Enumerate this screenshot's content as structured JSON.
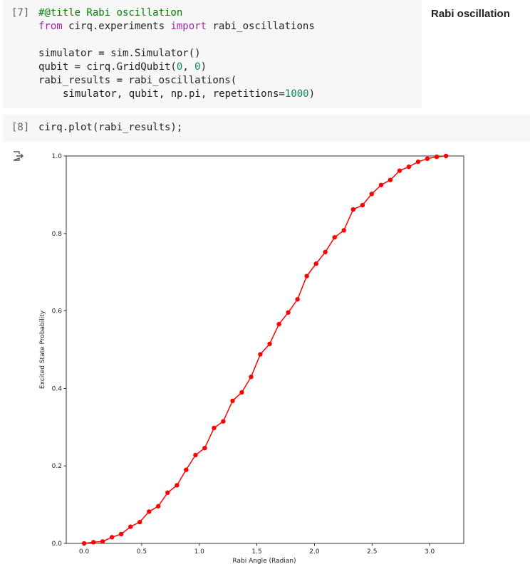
{
  "cells": [
    {
      "label": "[7]",
      "lines": [
        [
          "#@title Rabi oscillation"
        ],
        [
          "from",
          "cirq.experiments",
          "import",
          "rabi_oscillations"
        ],
        [
          "simulator = sim.Simulator()"
        ],
        [
          "qubit = cirq.GridQubit(",
          "0",
          ", ",
          "0",
          ")"
        ],
        [
          "rabi_results = rabi_oscillations("
        ],
        [
          "simulator, qubit, np.pi, repetitions=",
          "1000",
          ")"
        ]
      ],
      "form_title": "Rabi oscillation"
    },
    {
      "label": "[8]",
      "lines": [
        [
          "cirq.plot(rabi_results);"
        ]
      ]
    }
  ],
  "chart_data": {
    "type": "line",
    "x_label": "Rabi Angle (Radian)",
    "y_label": "Excited State Probability",
    "color": "#ff0000",
    "x": [
      0.0,
      0.081,
      0.161,
      0.242,
      0.322,
      0.403,
      0.483,
      0.564,
      0.644,
      0.725,
      0.806,
      0.886,
      0.967,
      1.047,
      1.128,
      1.208,
      1.289,
      1.369,
      1.45,
      1.53,
      1.611,
      1.692,
      1.772,
      1.853,
      1.933,
      2.014,
      2.094,
      2.175,
      2.255,
      2.336,
      2.417,
      2.497,
      2.578,
      2.658,
      2.739,
      2.819,
      2.9,
      2.98,
      3.061,
      3.142
    ],
    "values": [
      0.0,
      0.003,
      0.005,
      0.016,
      0.024,
      0.043,
      0.055,
      0.082,
      0.096,
      0.131,
      0.15,
      0.19,
      0.228,
      0.246,
      0.298,
      0.315,
      0.368,
      0.39,
      0.43,
      0.488,
      0.515,
      0.566,
      0.596,
      0.63,
      0.69,
      0.722,
      0.752,
      0.79,
      0.808,
      0.862,
      0.873,
      0.902,
      0.925,
      0.938,
      0.962,
      0.972,
      0.985,
      0.993,
      0.998,
      1.0
    ],
    "xlim": [
      -0.155,
      3.296
    ],
    "ylim": [
      0,
      1
    ],
    "xticks": [
      {
        "value": 0,
        "label": "0.0"
      },
      0.5,
      {
        "value": 1,
        "label": "1.0"
      },
      1.5,
      {
        "value": 2,
        "label": "2.0"
      },
      2.5,
      {
        "value": 3,
        "label": "3.0"
      }
    ],
    "yticks": [
      {
        "value": 0,
        "label": "0.0"
      },
      0.2,
      0.4,
      0.6,
      0.8,
      {
        "value": 1,
        "label": "1.0"
      }
    ]
  }
}
